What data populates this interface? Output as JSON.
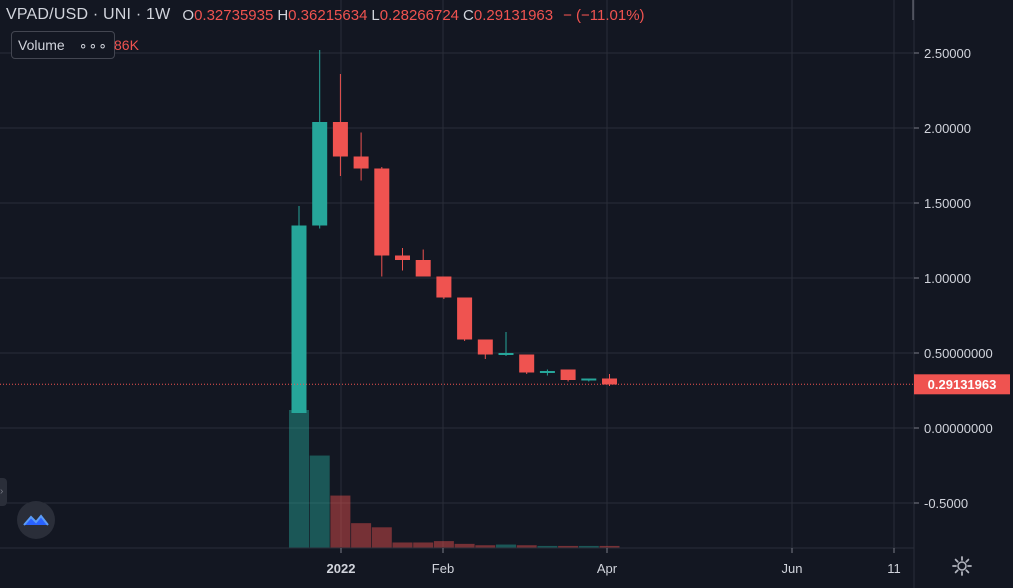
{
  "legend": {
    "symbol": "VPAD/USD · UNI · 1W",
    "open_label": "O",
    "open": "0.32735935",
    "high_label": "H",
    "high": "0.36215634",
    "low_label": "L",
    "low": "0.28266724",
    "close_label": "C",
    "close": "0.29131963",
    "change": "− (−11.01%)"
  },
  "volume": {
    "label": "Volume",
    "menu": "∘∘∘",
    "value": "86K"
  },
  "price_tag": "0.29131963",
  "colors": {
    "up": "#26a69a",
    "down": "#ef5350",
    "background": "#131722",
    "grid": "#2a2e39",
    "text": "#d1d4dc"
  },
  "chart_data": {
    "type": "candlestick",
    "symbol": "VPAD/USD",
    "exchange": "UNI",
    "interval": "1W",
    "y_ticks": [
      "2.50000",
      "2.00000",
      "1.50000",
      "1.00000",
      "0.50000000",
      "0.00000000",
      "-0.5000"
    ],
    "x_ticks": [
      "2022",
      "Feb",
      "Apr",
      "Jun",
      "11"
    ],
    "ylim": [
      -0.8,
      2.75
    ],
    "last_price": 0.29131963,
    "candles": [
      {
        "o": 0.1,
        "h": 1.48,
        "l": 0.1,
        "c": 1.35,
        "vol": 1.0
      },
      {
        "o": 1.35,
        "h": 2.52,
        "l": 1.33,
        "c": 2.04,
        "vol": 0.67
      },
      {
        "o": 2.04,
        "h": 2.36,
        "l": 1.68,
        "c": 1.81,
        "vol": 0.38
      },
      {
        "o": 1.81,
        "h": 1.97,
        "l": 1.65,
        "c": 1.73,
        "vol": 0.18
      },
      {
        "o": 1.73,
        "h": 1.74,
        "l": 1.01,
        "c": 1.15,
        "vol": 0.15
      },
      {
        "o": 1.15,
        "h": 1.2,
        "l": 1.05,
        "c": 1.12,
        "vol": 0.04
      },
      {
        "o": 1.12,
        "h": 1.19,
        "l": 1.01,
        "c": 1.01,
        "vol": 0.04
      },
      {
        "o": 1.01,
        "h": 1.01,
        "l": 0.86,
        "c": 0.87,
        "vol": 0.05
      },
      {
        "o": 0.87,
        "h": 0.87,
        "l": 0.58,
        "c": 0.59,
        "vol": 0.03
      },
      {
        "o": 0.59,
        "h": 0.59,
        "l": 0.46,
        "c": 0.49,
        "vol": 0.02
      },
      {
        "o": 0.49,
        "h": 0.64,
        "l": 0.48,
        "c": 0.5,
        "vol": 0.025
      },
      {
        "o": 0.49,
        "h": 0.49,
        "l": 0.36,
        "c": 0.37,
        "vol": 0.02
      },
      {
        "o": 0.37,
        "h": 0.39,
        "l": 0.35,
        "c": 0.38,
        "vol": 0.015
      },
      {
        "o": 0.39,
        "h": 0.39,
        "l": 0.31,
        "c": 0.32,
        "vol": 0.015
      },
      {
        "o": 0.32,
        "h": 0.33,
        "l": 0.31,
        "c": 0.33,
        "vol": 0.015
      },
      {
        "o": 0.33,
        "h": 0.36,
        "l": 0.28,
        "c": 0.29,
        "vol": 0.015
      }
    ]
  }
}
